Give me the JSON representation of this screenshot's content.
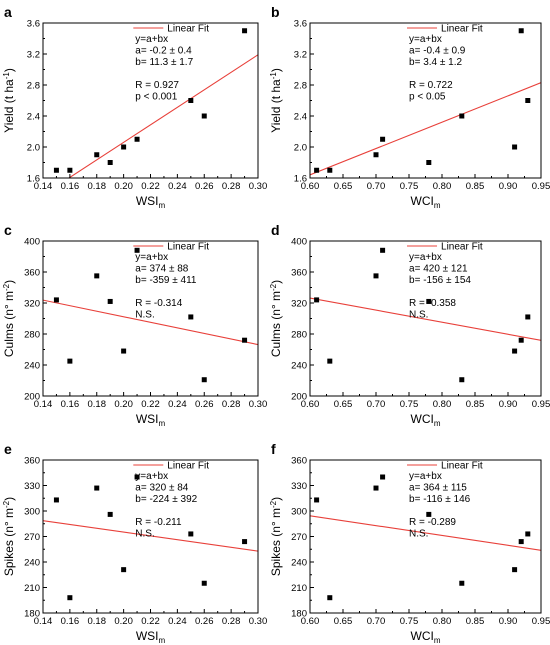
{
  "chart_data": [
    {
      "panel": "a",
      "type": "scatter",
      "xlabel": "WSI",
      "xlabel_sub": "m",
      "ylabel": "Yield (t ha",
      "ylabel_sup": "-1",
      "ylabel_end": ")",
      "xlim": [
        0.14,
        0.3
      ],
      "ylim": [
        1.6,
        3.6
      ],
      "xticks": [
        "0.14",
        "0.16",
        "0.18",
        "0.20",
        "0.22",
        "0.24",
        "0.26",
        "0.28",
        "0.30"
      ],
      "yticks": [
        "1.6",
        "2.0",
        "2.4",
        "2.8",
        "3.2",
        "3.6"
      ],
      "points": [
        [
          0.15,
          1.7
        ],
        [
          0.16,
          1.7
        ],
        [
          0.18,
          1.9
        ],
        [
          0.19,
          1.8
        ],
        [
          0.2,
          2.0
        ],
        [
          0.21,
          2.1
        ],
        [
          0.25,
          2.6
        ],
        [
          0.26,
          2.4
        ],
        [
          0.29,
          3.5
        ]
      ],
      "fit": {
        "a": -0.2,
        "b": 11.3
      },
      "legend": "Linear Fit",
      "annotations": [
        "y=a+bx",
        "a= -0.2 ± 0.4",
        "b= 11.3 ± 1.7",
        "",
        "R = 0.927",
        "p < 0.001"
      ]
    },
    {
      "panel": "b",
      "type": "scatter",
      "xlabel": "WCI",
      "xlabel_sub": "m",
      "ylabel": "Yield (t ha",
      "ylabel_sup": "-1",
      "ylabel_end": ")",
      "xlim": [
        0.6,
        0.95
      ],
      "ylim": [
        1.6,
        3.6
      ],
      "xticks": [
        "0.60",
        "0.65",
        "0.70",
        "0.75",
        "0.80",
        "0.85",
        "0.90",
        "0.95"
      ],
      "yticks": [
        "1.6",
        "2.0",
        "2.4",
        "2.8",
        "3.2",
        "3.6"
      ],
      "points": [
        [
          0.61,
          1.7
        ],
        [
          0.63,
          1.7
        ],
        [
          0.7,
          1.9
        ],
        [
          0.71,
          2.1
        ],
        [
          0.78,
          1.8
        ],
        [
          0.83,
          2.4
        ],
        [
          0.91,
          2.0
        ],
        [
          0.92,
          3.5
        ],
        [
          0.93,
          2.6
        ]
      ],
      "fit": {
        "a": -0.4,
        "b": 3.4
      },
      "legend": "Linear Fit",
      "annotations": [
        "y=a+bx",
        "a= -0.4 ± 0.9",
        "b= 3.4 ± 1.2",
        "",
        "R = 0.722",
        "p < 0.05"
      ]
    },
    {
      "panel": "c",
      "type": "scatter",
      "xlabel": "WSI",
      "xlabel_sub": "m",
      "ylabel": "Culms (n° m",
      "ylabel_sup": "-2",
      "ylabel_end": ")",
      "xlim": [
        0.14,
        0.3
      ],
      "ylim": [
        200,
        400
      ],
      "xticks": [
        "0.14",
        "0.16",
        "0.18",
        "0.20",
        "0.22",
        "0.24",
        "0.26",
        "0.28",
        "0.30"
      ],
      "yticks": [
        "200",
        "240",
        "280",
        "320",
        "360",
        "400"
      ],
      "points": [
        [
          0.15,
          324
        ],
        [
          0.16,
          245
        ],
        [
          0.18,
          355
        ],
        [
          0.19,
          322
        ],
        [
          0.2,
          258
        ],
        [
          0.21,
          388
        ],
        [
          0.25,
          302
        ],
        [
          0.26,
          221
        ],
        [
          0.29,
          272
        ]
      ],
      "fit": {
        "a": 374,
        "b": -359
      },
      "legend": "Linear Fit",
      "annotations": [
        "y=a+bx",
        "a=  374 ± 88",
        "b= -359 ± 411",
        "",
        "R = -0.314",
        "N.S."
      ]
    },
    {
      "panel": "d",
      "type": "scatter",
      "xlabel": "WCI",
      "xlabel_sub": "m",
      "ylabel": "Culms (n° m",
      "ylabel_sup": "-2",
      "ylabel_end": ")",
      "xlim": [
        0.6,
        0.95
      ],
      "ylim": [
        200,
        400
      ],
      "xticks": [
        "0.60",
        "0.65",
        "0.70",
        "0.75",
        "0.80",
        "0.85",
        "0.90",
        "0.95"
      ],
      "yticks": [
        "200",
        "240",
        "280",
        "320",
        "360",
        "400"
      ],
      "points": [
        [
          0.61,
          324
        ],
        [
          0.63,
          245
        ],
        [
          0.7,
          355
        ],
        [
          0.71,
          388
        ],
        [
          0.78,
          322
        ],
        [
          0.83,
          221
        ],
        [
          0.91,
          258
        ],
        [
          0.92,
          272
        ],
        [
          0.93,
          302
        ]
      ],
      "fit": {
        "a": 420,
        "b": -156
      },
      "legend": "Linear Fit",
      "annotations": [
        "y=a+bx",
        "a=  420 ± 121",
        "b= -156 ± 154",
        "",
        "R = -0.358",
        "N.S."
      ]
    },
    {
      "panel": "e",
      "type": "scatter",
      "xlabel": "WSI",
      "xlabel_sub": "m",
      "ylabel": "Spikes (n° m",
      "ylabel_sup": "-2",
      "ylabel_end": ")",
      "xlim": [
        0.14,
        0.3
      ],
      "ylim": [
        180,
        360
      ],
      "xticks": [
        "0.14",
        "0.16",
        "0.18",
        "0.20",
        "0.22",
        "0.24",
        "0.26",
        "0.28",
        "0.30"
      ],
      "yticks": [
        "180",
        "210",
        "240",
        "270",
        "300",
        "330",
        "360"
      ],
      "points": [
        [
          0.15,
          313
        ],
        [
          0.16,
          198
        ],
        [
          0.18,
          327
        ],
        [
          0.19,
          296
        ],
        [
          0.2,
          231
        ],
        [
          0.21,
          340
        ],
        [
          0.25,
          273
        ],
        [
          0.26,
          215
        ],
        [
          0.29,
          264
        ]
      ],
      "fit": {
        "a": 320,
        "b": -224
      },
      "legend": "Linear Fit",
      "annotations": [
        "y=a+bx",
        "a=  320 ± 84",
        "b= -224 ± 392",
        "",
        "R = -0.211",
        "N.S."
      ]
    },
    {
      "panel": "f",
      "type": "scatter",
      "xlabel": "WCI",
      "xlabel_sub": "m",
      "ylabel": "Spikes (n° m",
      "ylabel_sup": "-2",
      "ylabel_end": ")",
      "xlim": [
        0.6,
        0.95
      ],
      "ylim": [
        180,
        360
      ],
      "xticks": [
        "0.60",
        "0.65",
        "0.70",
        "0.75",
        "0.80",
        "0.85",
        "0.90",
        "0.95"
      ],
      "yticks": [
        "180",
        "210",
        "240",
        "270",
        "300",
        "330",
        "360"
      ],
      "points": [
        [
          0.61,
          313
        ],
        [
          0.63,
          198
        ],
        [
          0.7,
          327
        ],
        [
          0.71,
          340
        ],
        [
          0.78,
          296
        ],
        [
          0.83,
          215
        ],
        [
          0.91,
          231
        ],
        [
          0.92,
          264
        ],
        [
          0.93,
          273
        ]
      ],
      "fit": {
        "a": 364,
        "b": -116
      },
      "legend": "Linear Fit",
      "annotations": [
        "y=a+bx",
        "a=  364 ± 115",
        "b= -116 ± 146",
        "",
        "R = -0.289",
        "N.S."
      ]
    }
  ],
  "colors": {
    "fit_line": "#e8403a",
    "points": "#000000",
    "axis": "#000000"
  }
}
